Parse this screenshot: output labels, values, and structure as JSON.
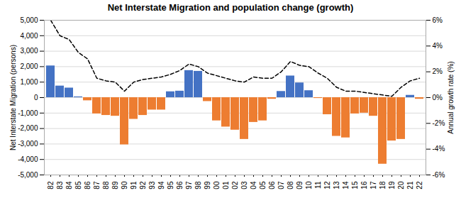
{
  "chart_data": {
    "type": "bar",
    "title": "Net Interstate Migration and population change (growth)",
    "categories": [
      "82",
      "83",
      "84",
      "85",
      "86",
      "87",
      "88",
      "89",
      "90",
      "91",
      "92",
      "93",
      "94",
      "95",
      "96",
      "97",
      "98",
      "99",
      "00",
      "01",
      "02",
      "03",
      "04",
      "05",
      "06",
      "07",
      "08",
      "09",
      "10",
      "11",
      "12",
      "13",
      "14",
      "15",
      "16",
      "17",
      "18",
      "19",
      "20",
      "21",
      "22"
    ],
    "series": [
      {
        "type": "bar",
        "values": [
          2050,
          750,
          620,
          50,
          -200,
          -1050,
          -1150,
          -1200,
          -3050,
          -1400,
          -1150,
          -800,
          -800,
          380,
          420,
          1750,
          1700,
          -250,
          -1500,
          -1900,
          -2100,
          -2700,
          -1600,
          -1500,
          -100,
          400,
          1400,
          950,
          450,
          -50,
          -1100,
          -2500,
          -2600,
          -1050,
          -1000,
          -1200,
          -4300,
          -2800,
          -2700,
          150,
          -100
        ],
        "colors": [
          "#4472c4",
          "#4472c4",
          "#4472c4",
          "#4472c4",
          "#ed7d31",
          "#ed7d31",
          "#ed7d31",
          "#ed7d31",
          "#ed7d31",
          "#ed7d31",
          "#ed7d31",
          "#ed7d31",
          "#ed7d31",
          "#4472c4",
          "#4472c4",
          "#4472c4",
          "#4472c4",
          "#ed7d31",
          "#ed7d31",
          "#ed7d31",
          "#ed7d31",
          "#ed7d31",
          "#ed7d31",
          "#ed7d31",
          "#ed7d31",
          "#4472c4",
          "#4472c4",
          "#4472c4",
          "#4472c4",
          "#ed7d31",
          "#ed7d31",
          "#ed7d31",
          "#ed7d31",
          "#ed7d31",
          "#ed7d31",
          "#ed7d31",
          "#ed7d31",
          "#ed7d31",
          "#ed7d31",
          "#4472c4",
          "#ed7d31"
        ]
      },
      {
        "type": "line",
        "axis": "y2",
        "color": "#000000",
        "line_style": "dashed",
        "values": [
          6.0,
          4.8,
          4.5,
          3.5,
          3.0,
          1.5,
          1.3,
          1.2,
          0.5,
          1.2,
          1.4,
          1.5,
          1.6,
          1.8,
          2.1,
          2.6,
          2.4,
          1.9,
          1.7,
          1.5,
          1.3,
          1.2,
          1.6,
          1.5,
          1.5,
          2.0,
          2.8,
          2.5,
          2.4,
          1.9,
          1.5,
          0.8,
          0.5,
          0.5,
          0.4,
          0.3,
          0.2,
          0.1,
          0.8,
          1.3,
          1.5
        ]
      }
    ],
    "ylabel": "Net Interstate Migration (persons)",
    "y2label": "Annual growth rate (%)",
    "ylim": [
      -5000,
      5000
    ],
    "yticks": [
      {
        "value": -5000,
        "label": "-5,000"
      },
      {
        "value": -4000,
        "label": "-4,000"
      },
      {
        "value": -3000,
        "label": "-3,000"
      },
      {
        "value": -2000,
        "label": "-2,000"
      },
      {
        "value": -1000,
        "label": "-1,000"
      },
      0,
      {
        "value": 1000,
        "label": "1,000"
      },
      {
        "value": 2000,
        "label": "2,000"
      },
      {
        "value": 3000,
        "label": "3,000"
      },
      {
        "value": 4000,
        "label": "4,000"
      },
      {
        "value": 5000,
        "label": "5,000"
      }
    ],
    "y2lim": [
      -6,
      6
    ],
    "y2ticks": [
      {
        "value": -6,
        "label": "-6%"
      },
      {
        "value": -4,
        "label": "-4%"
      },
      {
        "value": -2,
        "label": "-2%"
      },
      {
        "value": 0,
        "label": "0%"
      },
      {
        "value": 2,
        "label": "2%"
      },
      {
        "value": 4,
        "label": "4%"
      },
      {
        "value": 6,
        "label": "6%"
      }
    ],
    "grid": true
  }
}
